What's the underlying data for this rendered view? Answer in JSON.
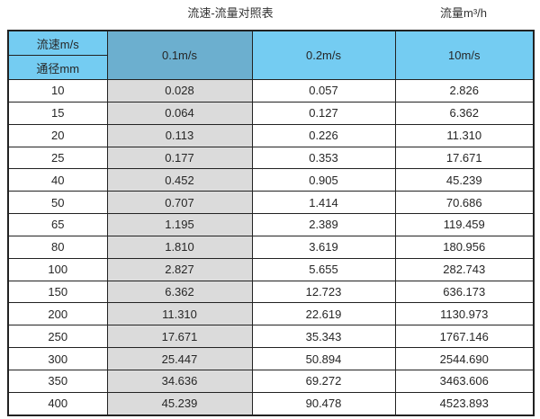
{
  "titles": {
    "left": "流速-流量对照表",
    "right": "流量m³/h"
  },
  "chart_data": {
    "type": "table",
    "title": "流速-流量对照表",
    "unit_label": "流量m³/h",
    "corner_top": "流速m/s",
    "corner_bottom": "通径mm",
    "columns": [
      "0.1m/s",
      "0.2m/s",
      "10m/s"
    ],
    "rows": [
      {
        "diameter": "10",
        "values": [
          "0.028",
          "0.057",
          "2.826"
        ]
      },
      {
        "diameter": "15",
        "values": [
          "0.064",
          "0.127",
          "6.362"
        ]
      },
      {
        "diameter": "20",
        "values": [
          "0.113",
          "0.226",
          "11.310"
        ]
      },
      {
        "diameter": "25",
        "values": [
          "0.177",
          "0.353",
          "17.671"
        ]
      },
      {
        "diameter": "40",
        "values": [
          "0.452",
          "0.905",
          "45.239"
        ]
      },
      {
        "diameter": "50",
        "values": [
          "0.707",
          "1.414",
          "70.686"
        ]
      },
      {
        "diameter": "65",
        "values": [
          "1.195",
          "2.389",
          "119.459"
        ]
      },
      {
        "diameter": "80",
        "values": [
          "1.810",
          "3.619",
          "180.956"
        ]
      },
      {
        "diameter": "100",
        "values": [
          "2.827",
          "5.655",
          "282.743"
        ]
      },
      {
        "diameter": "150",
        "values": [
          "6.362",
          "12.723",
          "636.173"
        ]
      },
      {
        "diameter": "200",
        "values": [
          "11.310",
          "22.619",
          "1130.973"
        ]
      },
      {
        "diameter": "250",
        "values": [
          "17.671",
          "35.343",
          "1767.146"
        ]
      },
      {
        "diameter": "300",
        "values": [
          "25.447",
          "50.894",
          "2544.690"
        ]
      },
      {
        "diameter": "350",
        "values": [
          "34.636",
          "69.272",
          "3463.606"
        ]
      },
      {
        "diameter": "400",
        "values": [
          "45.239",
          "90.478",
          "4523.893"
        ]
      }
    ]
  },
  "colors": {
    "header_blue": "#74CCF2",
    "header_dark_blue": "#6CAFCF",
    "column_gray": "#DBDBDB",
    "border_color": "#222222",
    "text_color": "#262626",
    "title_color": "#333333"
  }
}
